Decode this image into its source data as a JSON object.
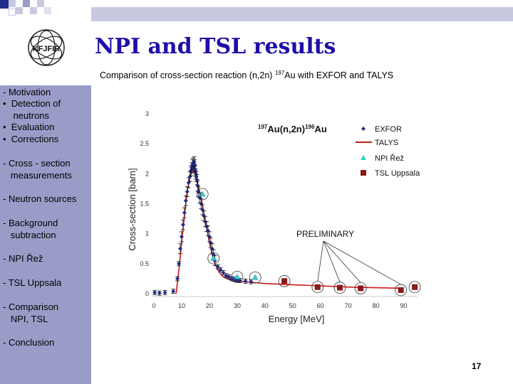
{
  "slide": {
    "title": "NPI and TSL results",
    "subtitle_pre": "Comparison of cross-section reaction (n,2n) ",
    "subtitle_sup": "197",
    "subtitle_post": "Au with EXFOR and TALYS",
    "page_number": "17",
    "logo_letters": [
      "K",
      "F",
      "J",
      "F",
      "I",
      "R"
    ]
  },
  "nav": {
    "motivation": "- Motivation",
    "detection": "•  Detection of\n    neutrons",
    "evaluation": "•  Evaluation",
    "corrections": "•  Corrections",
    "cross_section": "- Cross - section\n   measurements",
    "neutron_sources": "- Neutron sources",
    "background": "- Background\n   subtraction",
    "npi": "- NPI Řež",
    "tsl": "- TSL Uppsala",
    "comparison": "- Comparison\n   NPI, TSL",
    "conclusion": "- Conclusion"
  },
  "colors": {
    "title": "#1f0fa8",
    "sidebar": "#9a9cc8",
    "exfor": "#1f2e8c",
    "talys": "#cc1a1a",
    "npi": "#33cccc",
    "tsl": "#8b1a1a"
  },
  "chart_data": {
    "type": "scatter",
    "reaction_label": {
      "sup1": "197",
      "main1": "Au(n,2n)",
      "sup2": "196",
      "main2": "Au"
    },
    "xlabel": "Energy [MeV]",
    "ylabel": "Cross-section [barn]",
    "xlim": [
      0,
      95
    ],
    "ylim": [
      0,
      3
    ],
    "x_ticks": [
      "0",
      "10",
      "20",
      "30",
      "40",
      "50",
      "60",
      "70",
      "80",
      "90"
    ],
    "y_ticks": [
      "0",
      "0.5",
      "1",
      "1.5",
      "2",
      "2.5",
      "3"
    ],
    "annotation": "PRELIMINARY",
    "legend_position": "top-right",
    "series": [
      {
        "name": "EXFOR",
        "marker": "diamond",
        "x": [
          0.3,
          2,
          4,
          7,
          8.5,
          9.0,
          9.5,
          10.0,
          10.5,
          11.0,
          11.5,
          12.0,
          12.5,
          13.0,
          13.3,
          13.6,
          13.9,
          14.1,
          14.3,
          14.5,
          14.7,
          14.9,
          15.1,
          15.3,
          15.5,
          15.8,
          16.0,
          16.5,
          17.0,
          17.5,
          18.0,
          18.5,
          19.0,
          19.5,
          20.0,
          20.5,
          21.0,
          21.5,
          22.0,
          23.0,
          24.0,
          25.0,
          26.0,
          27.0,
          28.0,
          29.0,
          30.0,
          31.0,
          33.0,
          35.0
        ],
        "y": [
          0.02,
          0.01,
          0.02,
          0.04,
          0.25,
          0.5,
          0.75,
          0.95,
          1.15,
          1.35,
          1.55,
          1.7,
          1.85,
          1.95,
          2.05,
          2.1,
          2.15,
          2.18,
          2.1,
          2.2,
          2.15,
          2.05,
          2.0,
          1.95,
          1.9,
          1.8,
          1.7,
          1.6,
          1.5,
          1.4,
          1.3,
          1.2,
          1.12,
          1.05,
          0.95,
          0.85,
          0.75,
          0.65,
          0.55,
          0.45,
          0.4,
          0.35,
          0.3,
          0.28,
          0.25,
          0.24,
          0.23,
          0.22,
          0.21,
          0.2
        ]
      },
      {
        "name": "TALYS",
        "marker": "line",
        "x": [
          8,
          9,
          10,
          11,
          12,
          13,
          14,
          15,
          16,
          17,
          18,
          19,
          20,
          21,
          22,
          23,
          24,
          25,
          27,
          30,
          35,
          40,
          50,
          60,
          70,
          80,
          90
        ],
        "y": [
          0.0,
          0.4,
          0.85,
          1.3,
          1.7,
          1.95,
          2.05,
          2.0,
          1.8,
          1.6,
          1.35,
          1.1,
          0.85,
          0.65,
          0.5,
          0.4,
          0.33,
          0.28,
          0.24,
          0.21,
          0.19,
          0.17,
          0.15,
          0.13,
          0.11,
          0.1,
          0.09
        ]
      },
      {
        "name": "NPI Řež",
        "marker": "triangle",
        "x": [
          17.5,
          21.5,
          30,
          36.5
        ],
        "y": [
          1.66,
          0.59,
          0.28,
          0.27
        ]
      },
      {
        "name": "TSL Uppsala",
        "marker": "square",
        "x": [
          47,
          59,
          67,
          74.5,
          89,
          94
        ],
        "y": [
          0.21,
          0.11,
          0.1,
          0.09,
          0.06,
          0.11
        ]
      }
    ]
  }
}
